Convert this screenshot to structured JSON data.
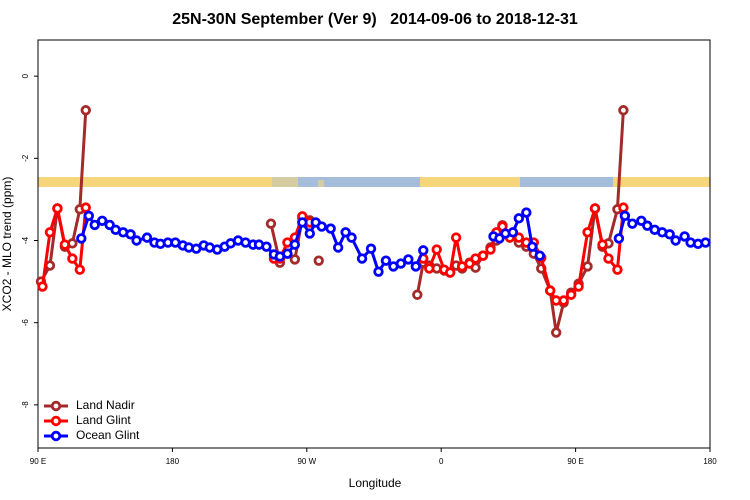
{
  "chart_data": {
    "type": "line",
    "title": "25N-30N September (Ver 9)   2014-09-06 to 2018-12-31",
    "xlabel": "Longitude",
    "ylabel": "XCO2 - MLO trend (ppm)",
    "xlim": [
      90,
      540
    ],
    "ylim": [
      -9.05,
      0.88
    ],
    "xticks": [
      {
        "value": 90,
        "label": "90 E"
      },
      180,
      {
        "value": 270,
        "label": "90 W"
      },
      {
        "value": 360,
        "label": "0"
      },
      {
        "value": 450,
        "label": "90 E"
      },
      {
        "value": 540,
        "label": "180"
      }
    ],
    "yticks": [
      0,
      -2,
      -4,
      -6,
      -8
    ],
    "legend": "bottom-left",
    "series": [
      {
        "name": "Land Nadir",
        "color": "#a52a2a",
        "x": [
          92,
          98,
          103,
          108,
          113,
          118,
          122,
          null,
          246,
          252,
          257,
          262,
          267,
          272,
          null,
          278,
          null,
          344,
          348,
          352,
          357,
          362,
          366,
          370,
          374,
          379,
          383,
          388,
          393,
          397,
          401,
          406,
          412,
          417,
          422,
          427,
          433,
          437,
          442,
          447,
          452,
          458,
          463,
          468,
          472,
          478,
          482
        ],
        "values": [
          -5.0,
          -4.61,
          -3.22,
          -4.15,
          -4.07,
          -3.24,
          -0.83,
          null,
          -3.59,
          -4.54,
          -4.32,
          -4.46,
          -3.46,
          -3.51,
          null,
          -4.49,
          null,
          -5.32,
          -4.54,
          -4.61,
          -4.68,
          -4.73,
          -4.78,
          -4.61,
          -4.68,
          -4.54,
          -4.66,
          -4.37,
          -4.17,
          -4.0,
          -3.63,
          -3.88,
          -4.05,
          -4.15,
          -4.32,
          -4.68,
          -5.22,
          -6.24,
          -5.51,
          -5.27,
          -5.05,
          -4.63,
          -3.22,
          -4.15,
          -4.07,
          -3.24,
          -0.83
        ]
      },
      {
        "name": "Land Glint",
        "color": "#ff0000",
        "x": [
          93,
          98,
          103,
          108,
          113,
          118,
          122,
          null,
          248,
          252,
          257,
          262,
          267,
          272,
          null,
          348,
          352,
          357,
          362,
          366,
          370,
          374,
          379,
          383,
          388,
          393,
          397,
          401,
          406,
          412,
          417,
          422,
          427,
          433,
          437,
          442,
          447,
          452,
          458,
          463,
          468,
          472,
          478,
          482
        ],
        "values": [
          -5.12,
          -3.8,
          -3.22,
          -4.1,
          -4.44,
          -4.71,
          -3.2,
          null,
          -4.44,
          -4.44,
          -4.05,
          -3.93,
          -3.41,
          -3.56,
          null,
          -4.44,
          -4.68,
          -4.22,
          -4.71,
          -4.78,
          -3.93,
          -4.63,
          -4.56,
          -4.44,
          -4.37,
          -4.22,
          -3.8,
          -3.66,
          -3.93,
          -3.93,
          -4.05,
          -4.05,
          -4.42,
          -5.22,
          -5.46,
          -5.46,
          -5.32,
          -5.12,
          -3.8,
          -3.22,
          -4.1,
          -4.44,
          -4.71,
          -3.2
        ]
      },
      {
        "name": "Ocean Glint",
        "color": "#0000ff",
        "x": [
          119,
          124,
          128,
          133,
          138,
          142,
          147,
          152,
          156,
          163,
          168,
          172,
          177,
          182,
          187,
          191,
          196,
          201,
          205,
          210,
          215,
          219,
          224,
          229,
          234,
          238,
          243,
          248,
          252,
          257,
          262,
          267,
          272,
          276,
          280,
          286,
          291,
          296,
          300,
          307,
          313,
          318,
          323,
          328,
          333,
          338,
          343,
          348,
          null,
          395,
          399,
          403,
          408,
          412,
          417,
          421,
          426,
          null,
          479,
          483,
          488,
          494,
          498,
          503,
          508,
          513,
          517,
          523,
          527,
          532,
          537
        ],
        "values": [
          -3.95,
          -3.4,
          -3.62,
          -3.52,
          -3.62,
          -3.74,
          -3.8,
          -3.85,
          -4.0,
          -3.93,
          -4.05,
          -4.08,
          -4.05,
          -4.05,
          -4.12,
          -4.17,
          -4.2,
          -4.12,
          -4.17,
          -4.22,
          -4.15,
          -4.07,
          -4.0,
          -4.05,
          -4.1,
          -4.1,
          -4.15,
          -4.34,
          -4.39,
          -4.32,
          -4.1,
          -3.56,
          -3.83,
          -3.56,
          -3.66,
          -3.71,
          -4.17,
          -3.8,
          -3.93,
          -4.44,
          -4.2,
          -4.76,
          -4.49,
          -4.63,
          -4.56,
          -4.46,
          -4.63,
          -4.24,
          null,
          -3.9,
          -3.95,
          -3.83,
          -3.8,
          -3.46,
          -3.32,
          -4.15,
          -4.37,
          null,
          -3.95,
          -3.4,
          -3.59,
          -3.52,
          -3.64,
          -3.74,
          -3.8,
          -3.85,
          -4.0,
          -3.9,
          -4.05,
          -4.08,
          -4.05
        ]
      }
    ]
  }
}
